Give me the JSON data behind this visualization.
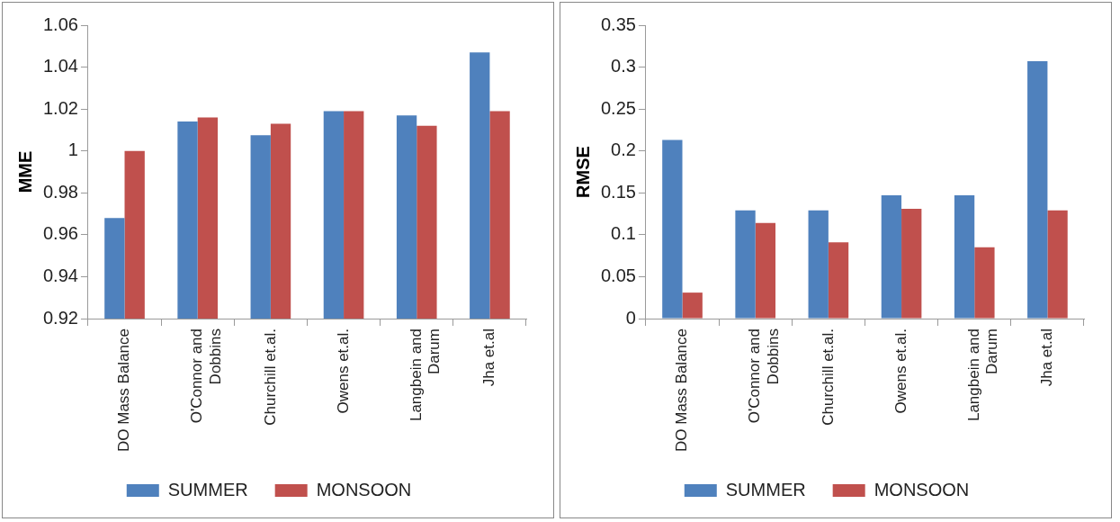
{
  "chart_data": [
    {
      "type": "bar",
      "ylabel": "MME",
      "categories": [
        "DO Mass Balance",
        "O'Connor and Dobbins",
        "Churchill et.al.",
        "Owens et.al.",
        "Langbein and Darum",
        "Jha et.al"
      ],
      "series": [
        {
          "name": "SUMMER",
          "color": "#4f81bd",
          "values": [
            0.968,
            1.014,
            1.0075,
            1.019,
            1.017,
            1.047
          ]
        },
        {
          "name": "MONSOON",
          "color": "#c0504d",
          "values": [
            1.0,
            1.016,
            1.013,
            1.019,
            1.012,
            1.019
          ]
        }
      ],
      "ylim": [
        0.92,
        1.06
      ],
      "yticks": [
        0.92,
        0.94,
        0.96,
        0.98,
        1,
        1.02,
        1.04,
        1.06
      ],
      "grid": false,
      "legend": "bottom"
    },
    {
      "type": "bar",
      "ylabel": "RMSE",
      "categories": [
        "DO Mass Balance",
        "O'Connor and Dobbins",
        "Churchill et.al.",
        "Owens et.al.",
        "Langbein and Darum",
        "Jha et.al"
      ],
      "series": [
        {
          "name": "SUMMER",
          "color": "#4f81bd",
          "values": [
            0.213,
            0.129,
            0.129,
            0.147,
            0.147,
            0.307
          ]
        },
        {
          "name": "MONSOON",
          "color": "#c0504d",
          "values": [
            0.031,
            0.114,
            0.091,
            0.131,
            0.085,
            0.129
          ]
        }
      ],
      "ylim": [
        0,
        0.35
      ],
      "yticks": [
        0,
        0.05,
        0.1,
        0.15,
        0.2,
        0.25,
        0.3,
        0.35
      ],
      "grid": false,
      "legend": "bottom"
    }
  ]
}
